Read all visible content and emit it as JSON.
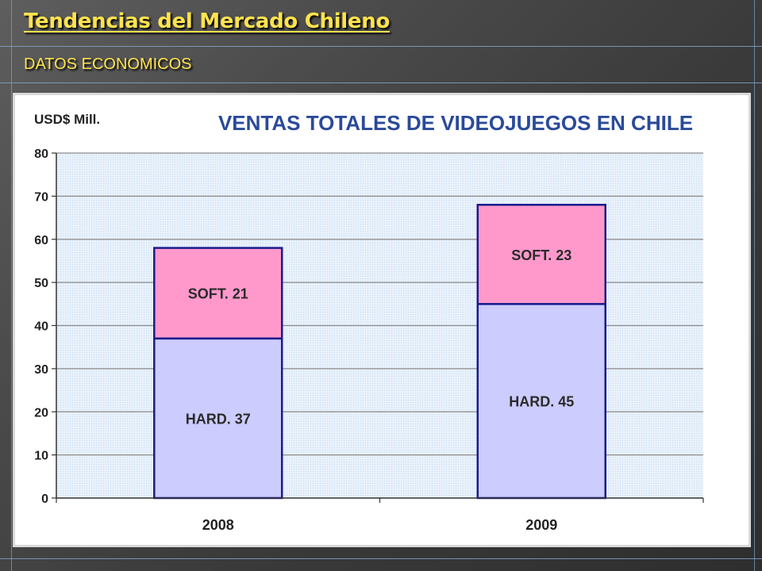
{
  "slide": {
    "title": "Tendencias del Mercado Chileno",
    "subtitle": "DATOS ECONOMICOS"
  },
  "chart_data": {
    "type": "bar",
    "stacked": true,
    "title": "VENTAS TOTALES DE VIDEOJUEGOS EN CHILE",
    "ylabel": "USD$ Mill.",
    "xlabel": "",
    "categories": [
      "2008",
      "2009"
    ],
    "ylim": [
      0,
      80
    ],
    "yticks": [
      0,
      10,
      20,
      30,
      40,
      50,
      60,
      70,
      80
    ],
    "grid": true,
    "series": [
      {
        "name": "HARD.",
        "values": [
          37,
          45
        ],
        "color": "#ccccff",
        "labels": [
          "HARD. 37",
          "HARD. 45"
        ]
      },
      {
        "name": "SOFT.",
        "values": [
          21,
          23
        ],
        "color": "#ff99cc",
        "labels": [
          "SOFT. 21",
          "SOFT. 23"
        ]
      }
    ],
    "colors": {
      "title": "#2a4a9a",
      "bar_border": "#1a1a8c",
      "plot_background": "#dbe9f7"
    }
  }
}
